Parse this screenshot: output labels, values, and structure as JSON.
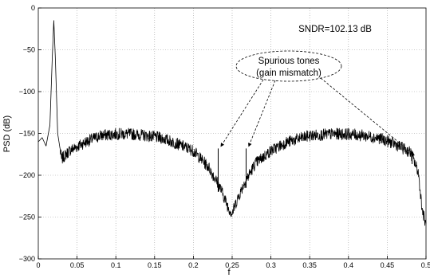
{
  "chart_data": {
    "type": "line",
    "xlabel": "f",
    "ylabel": "PSD (dB)",
    "xlim": [
      0,
      0.5
    ],
    "ylim": [
      -300,
      0
    ],
    "grid": true,
    "x_ticks": [
      0,
      0.05,
      0.1,
      0.15,
      0.2,
      0.25,
      0.3,
      0.35,
      0.4,
      0.45,
      0.5
    ],
    "x_tick_labels": [
      "0",
      "0.05",
      "0.1",
      "0.15",
      "0.2",
      "0.25",
      "0.3",
      "0.35",
      "0.4",
      "0.45",
      "0.5"
    ],
    "y_ticks": [
      0,
      -50,
      -100,
      -150,
      -200,
      -250,
      -300
    ],
    "y_tick_labels": [
      "0",
      "−50",
      "−100",
      "−150",
      "−200",
      "−250",
      "−300"
    ],
    "series": [
      {
        "color": "#000000",
        "x": [
          0.0,
          0.005,
          0.01,
          0.015,
          0.018,
          0.02,
          0.022,
          0.025,
          0.03,
          0.04,
          0.06,
          0.08,
          0.1,
          0.12,
          0.14,
          0.16,
          0.18,
          0.2,
          0.22,
          0.235,
          0.245,
          0.25,
          0.255,
          0.265,
          0.28,
          0.3,
          0.32,
          0.35,
          0.38,
          0.4,
          0.42,
          0.44,
          0.46,
          0.48,
          0.49,
          0.495,
          0.5
        ],
        "y": [
          -160,
          -155,
          -165,
          -140,
          -60,
          -15,
          -60,
          -150,
          -180,
          -170,
          -160,
          -152,
          -150,
          -150,
          -152,
          -155,
          -162,
          -170,
          -190,
          -215,
          -238,
          -245,
          -232,
          -210,
          -185,
          -170,
          -160,
          -152,
          -150,
          -150,
          -152,
          -155,
          -162,
          -172,
          -195,
          -240,
          -260
        ]
      }
    ],
    "spurs": [
      {
        "x": 0.232,
        "y": -168
      },
      {
        "x": 0.268,
        "y": -168
      },
      {
        "x": 0.482,
        "y": -178
      }
    ],
    "annotations": {
      "sndr": "SNDR=102.13 dB",
      "spur_line1": "Spurious tones",
      "spur_line2": "(gain mismatch)"
    }
  }
}
